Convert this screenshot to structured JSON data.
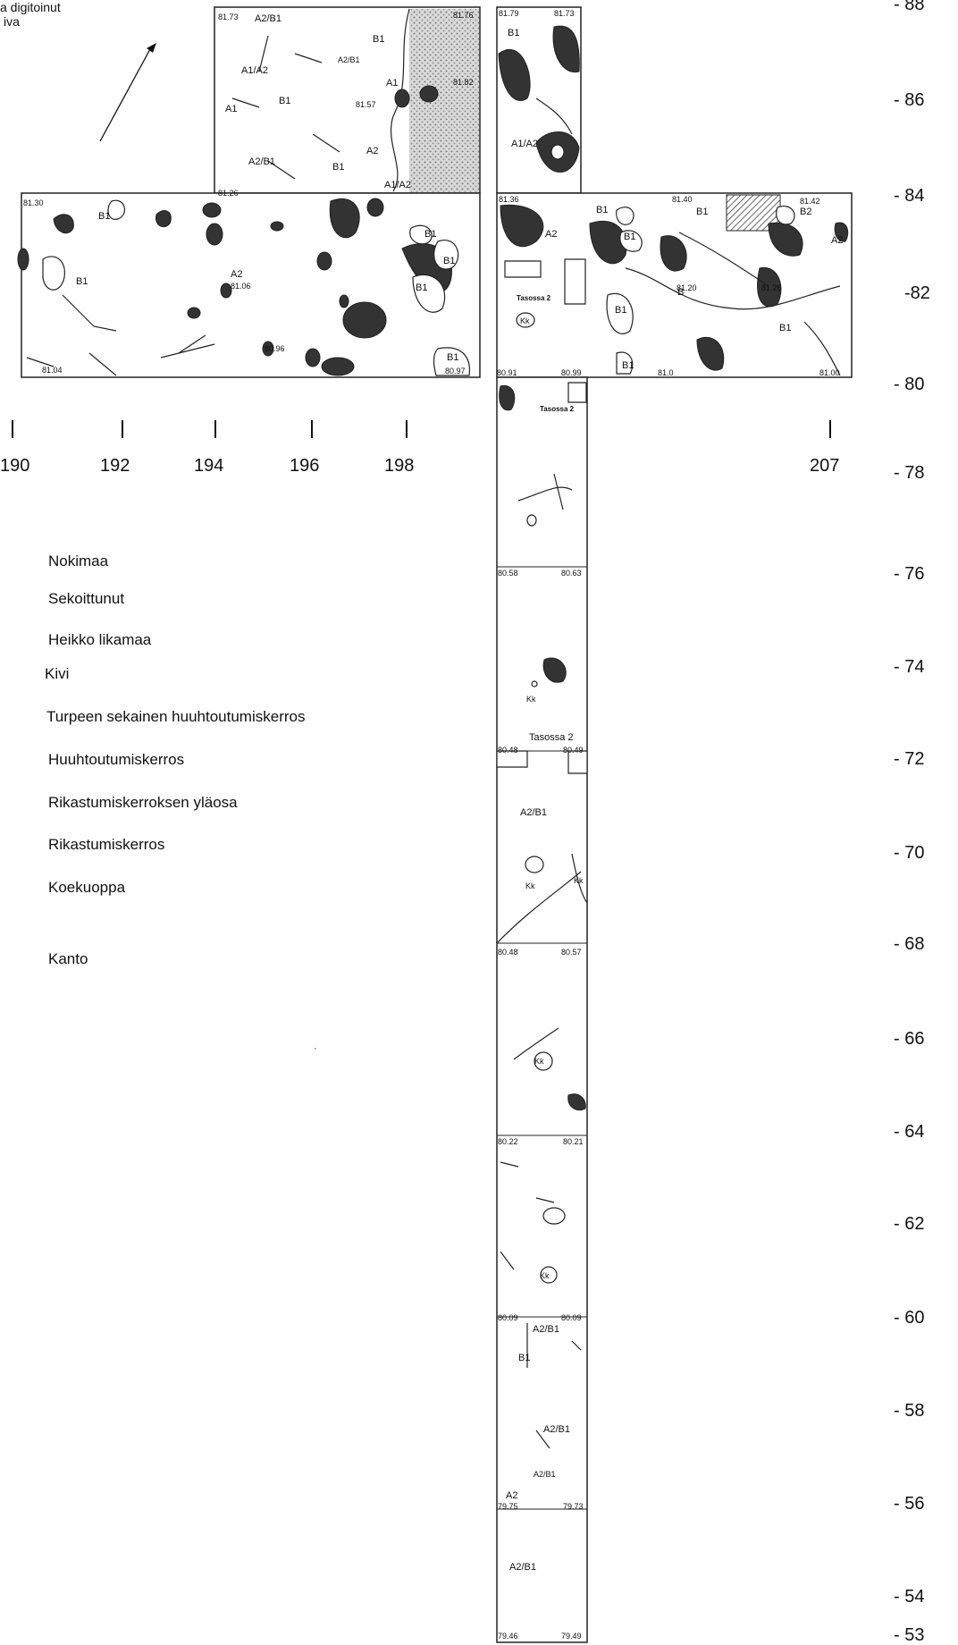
{
  "caption": {
    "line1": "a digitoinut",
    "line2": "iva"
  },
  "x_axis": {
    "ticks": [
      "190",
      "192",
      "194",
      "196",
      "198",
      "207"
    ]
  },
  "y_axis": {
    "ticks": [
      "- 88",
      "- 86",
      "- 84",
      "-82",
      "- 80",
      "- 78",
      "- 76",
      "- 74",
      "- 72",
      "- 70",
      "- 68",
      "- 66",
      "- 64",
      "- 62",
      "- 60",
      "- 58",
      "- 56",
      "- 54",
      "- 53"
    ]
  },
  "legend": {
    "items": [
      "Nokimaa",
      "Sekoittunut",
      "Heikko likamaa",
      "Kivi",
      "Turpeen sekainen huuhtoutumiskerros",
      "Huuhtoutumiskerros",
      "Rikastumiskerroksen yläosa",
      "Rikastumiskerros",
      "Koekuoppa",
      "Kanto"
    ]
  },
  "map_labels": {
    "top_block": [
      "81.73",
      "A2/B1",
      "81.76",
      "B1",
      "A1/A2",
      "A2/B1",
      "A1",
      "81.82",
      "A1",
      "B1",
      "81.57",
      "A2",
      "A2/B1",
      "B1",
      "81.26",
      "A1/A2"
    ],
    "left_block": [
      "81.30",
      "B1",
      "B1",
      "A2",
      "81.06",
      "80.96",
      "B1",
      "B1",
      "B1",
      "81.04",
      "B1",
      "80.97"
    ],
    "right_top": [
      "81.79",
      "81.73",
      "B1",
      "A1/A2"
    ],
    "right_block": [
      "81.36",
      "B1",
      "81.40",
      "B1",
      "81.42",
      "B2",
      "A2",
      "B1",
      "A2",
      "Tasossa 2",
      "81.20",
      "81.26",
      "B1",
      "Kk",
      "B1",
      "B1",
      "80.91",
      "80.99",
      "B",
      "81.0",
      "81.00"
    ],
    "trench": [
      "Tasossa 2",
      "80.58",
      "80.63",
      "Kk",
      "Tasossa 2",
      "80.48",
      "80.49",
      "A2/B1",
      "Kk",
      "Kk",
      "80.48",
      "80.57",
      "Kk",
      "80.22",
      "80.21",
      "Kk",
      "80.09",
      "80.09",
      "A2/B1",
      "B1",
      "A2/B1",
      "A2/B1",
      "A2",
      "79.75",
      "79.73",
      "A2/B1",
      "79.46",
      "79.49"
    ]
  },
  "colors": {
    "ink": "#111111",
    "nokimaa": "#333333",
    "paper": "#ffffff"
  }
}
